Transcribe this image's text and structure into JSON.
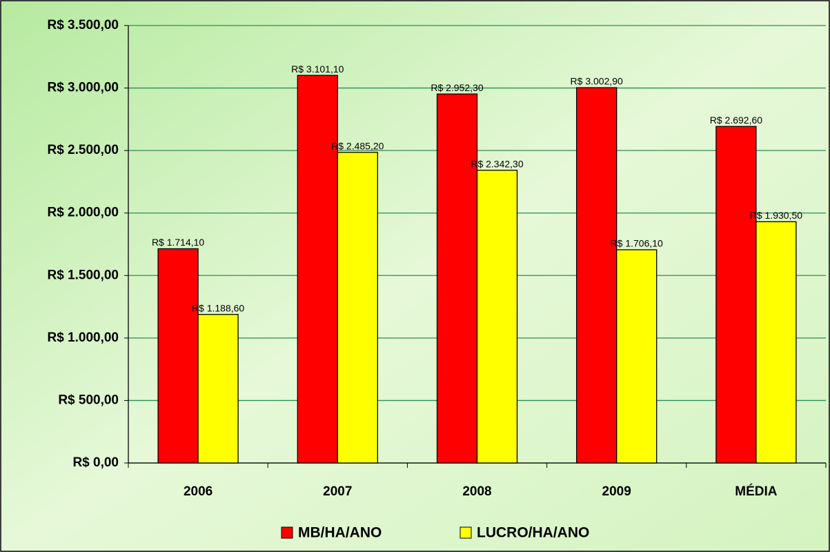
{
  "chart_data": {
    "type": "bar",
    "categories": [
      "2006",
      "2007",
      "2008",
      "2009",
      "MÉDIA"
    ],
    "series": [
      {
        "name": "MB/HA/ANO",
        "color": "#ff0000",
        "values": [
          1714.1,
          3101.1,
          2952.3,
          3002.9,
          2692.6
        ],
        "value_labels": [
          "R$ 1.714,10",
          "R$ 3.101,10",
          "R$ 2.952,30",
          "R$ 3.002,90",
          "R$ 2.692,60"
        ]
      },
      {
        "name": "LUCRO/HA/ANO",
        "color": "#ffff00",
        "values": [
          1188.6,
          2485.2,
          2342.3,
          1706.1,
          1930.5
        ],
        "value_labels": [
          "R$ 1.188,60",
          "R$ 2.485,20",
          "R$ 2.342,30",
          "R$ 1.706,10",
          "R$ 1.930,50"
        ]
      }
    ],
    "ylim": [
      0,
      3500
    ],
    "yticks": [
      {
        "value": 0,
        "label": "R$ 0,00"
      },
      {
        "value": 500,
        "label": "R$ 500,00"
      },
      {
        "value": 1000,
        "label": "R$ 1.000,00"
      },
      {
        "value": 1500,
        "label": "R$ 1.500,00"
      },
      {
        "value": 2000,
        "label": "R$ 2.000,00"
      },
      {
        "value": 2500,
        "label": "R$ 2.500,00"
      },
      {
        "value": 3000,
        "label": "R$ 3.000,00"
      },
      {
        "value": 3500,
        "label": "R$ 3.500,00"
      }
    ],
    "grid": true,
    "legend": "bottom"
  }
}
